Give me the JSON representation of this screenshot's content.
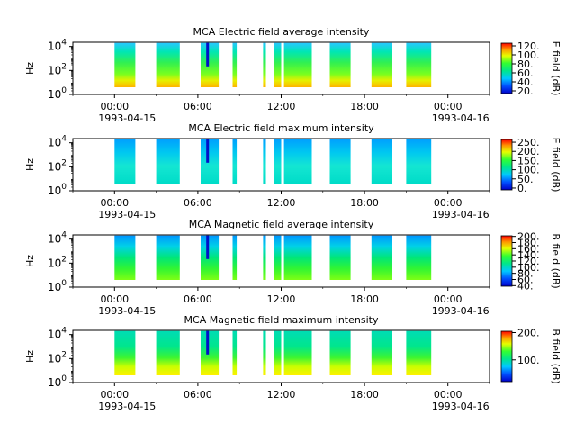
{
  "chart_data": [
    {
      "type": "heatmap",
      "title": "MCA  Electric field average intensity",
      "ylabel": "Hz",
      "y_scale": "log",
      "y_ticks": [
        {
          "base": "10",
          "exp": "0"
        },
        {
          "base": "10",
          "exp": "2"
        },
        {
          "base": "10",
          "exp": "4"
        }
      ],
      "x_ticks": [
        {
          "time": "00:00",
          "date": "1993-04-15"
        },
        {
          "time": "06:00",
          "date": ""
        },
        {
          "time": "12:00",
          "date": ""
        },
        {
          "time": "18:00",
          "date": ""
        },
        {
          "time": "00:00",
          "date": "1993-04-16"
        }
      ],
      "colorbar_label": "E field (dB)",
      "colorbar_ticks": [
        "20.",
        "40.",
        "60.",
        "80.",
        "100.",
        "120."
      ],
      "colorbar_range": [
        14,
        126
      ],
      "data_hours": [
        [
          0.0,
          1.5
        ],
        [
          3.0,
          4.7
        ],
        [
          6.2,
          7.5
        ],
        [
          8.5,
          8.8
        ],
        [
          10.7,
          10.9
        ],
        [
          11.5,
          12.0
        ],
        [
          12.2,
          14.2
        ],
        [
          15.5,
          17.0
        ],
        [
          18.5,
          20.0
        ],
        [
          21.0,
          22.8
        ]
      ],
      "freq_range_hz": [
        4,
        20000
      ]
    },
    {
      "type": "heatmap",
      "title": "MCA  Electric field maximum intensity",
      "ylabel": "Hz",
      "y_scale": "log",
      "y_ticks": [
        {
          "base": "10",
          "exp": "0"
        },
        {
          "base": "10",
          "exp": "2"
        },
        {
          "base": "10",
          "exp": "4"
        }
      ],
      "x_ticks": [
        {
          "time": "00:00",
          "date": "1993-04-15"
        },
        {
          "time": "06:00",
          "date": ""
        },
        {
          "time": "12:00",
          "date": ""
        },
        {
          "time": "18:00",
          "date": ""
        },
        {
          "time": "00:00",
          "date": "1993-04-16"
        }
      ],
      "colorbar_label": "E field (dB)",
      "colorbar_ticks": [
        "0.",
        "50.",
        "100.",
        "150.",
        "200.",
        "250."
      ],
      "colorbar_range": [
        -10,
        265
      ],
      "data_hours": [
        [
          0.0,
          1.5
        ],
        [
          3.0,
          4.7
        ],
        [
          6.2,
          7.5
        ],
        [
          8.5,
          8.8
        ],
        [
          10.7,
          10.9
        ],
        [
          11.5,
          12.0
        ],
        [
          12.2,
          14.2
        ],
        [
          15.5,
          17.0
        ],
        [
          18.5,
          20.0
        ],
        [
          21.0,
          22.8
        ]
      ],
      "freq_range_hz": [
        4,
        20000
      ]
    },
    {
      "type": "heatmap",
      "title": "MCA  Magnetic field average intensity",
      "ylabel": "Hz",
      "y_scale": "log",
      "y_ticks": [
        {
          "base": "10",
          "exp": "0"
        },
        {
          "base": "10",
          "exp": "2"
        },
        {
          "base": "10",
          "exp": "4"
        }
      ],
      "x_ticks": [
        {
          "time": "00:00",
          "date": "1993-04-15"
        },
        {
          "time": "06:00",
          "date": ""
        },
        {
          "time": "12:00",
          "date": ""
        },
        {
          "time": "18:00",
          "date": ""
        },
        {
          "time": "00:00",
          "date": "1993-04-16"
        }
      ],
      "colorbar_label": "B field (dB)",
      "colorbar_ticks": [
        "40.",
        "60.",
        "80.",
        "100.",
        "120.",
        "140.",
        "160.",
        "180.",
        "200."
      ],
      "colorbar_range": [
        38,
        202
      ],
      "data_hours": [
        [
          0.0,
          1.5
        ],
        [
          3.0,
          4.7
        ],
        [
          6.2,
          7.5
        ],
        [
          8.5,
          8.8
        ],
        [
          10.7,
          10.9
        ],
        [
          11.5,
          12.0
        ],
        [
          12.2,
          14.2
        ],
        [
          15.5,
          17.0
        ],
        [
          18.5,
          20.0
        ],
        [
          21.0,
          22.8
        ]
      ],
      "freq_range_hz": [
        4,
        20000
      ]
    },
    {
      "type": "heatmap",
      "title": "MCA  Magnetic field maximum intensity",
      "ylabel": "Hz",
      "y_scale": "log",
      "y_ticks": [
        {
          "base": "10",
          "exp": "0"
        },
        {
          "base": "10",
          "exp": "2"
        },
        {
          "base": "10",
          "exp": "4"
        }
      ],
      "x_ticks": [
        {
          "time": "00:00",
          "date": "1993-04-15"
        },
        {
          "time": "06:00",
          "date": ""
        },
        {
          "time": "12:00",
          "date": ""
        },
        {
          "time": "18:00",
          "date": ""
        },
        {
          "time": "00:00",
          "date": "1993-04-16"
        }
      ],
      "colorbar_label": "B field (dB)",
      "colorbar_ticks": [
        "100.",
        "200."
      ],
      "colorbar_range": [
        20,
        205
      ],
      "data_hours": [
        [
          0.0,
          1.5
        ],
        [
          3.0,
          4.7
        ],
        [
          6.2,
          7.5
        ],
        [
          8.5,
          8.8
        ],
        [
          10.7,
          10.9
        ],
        [
          11.5,
          12.0
        ],
        [
          12.2,
          14.2
        ],
        [
          15.5,
          17.0
        ],
        [
          18.5,
          20.0
        ],
        [
          21.0,
          22.8
        ]
      ],
      "freq_range_hz": [
        4,
        20000
      ]
    }
  ]
}
